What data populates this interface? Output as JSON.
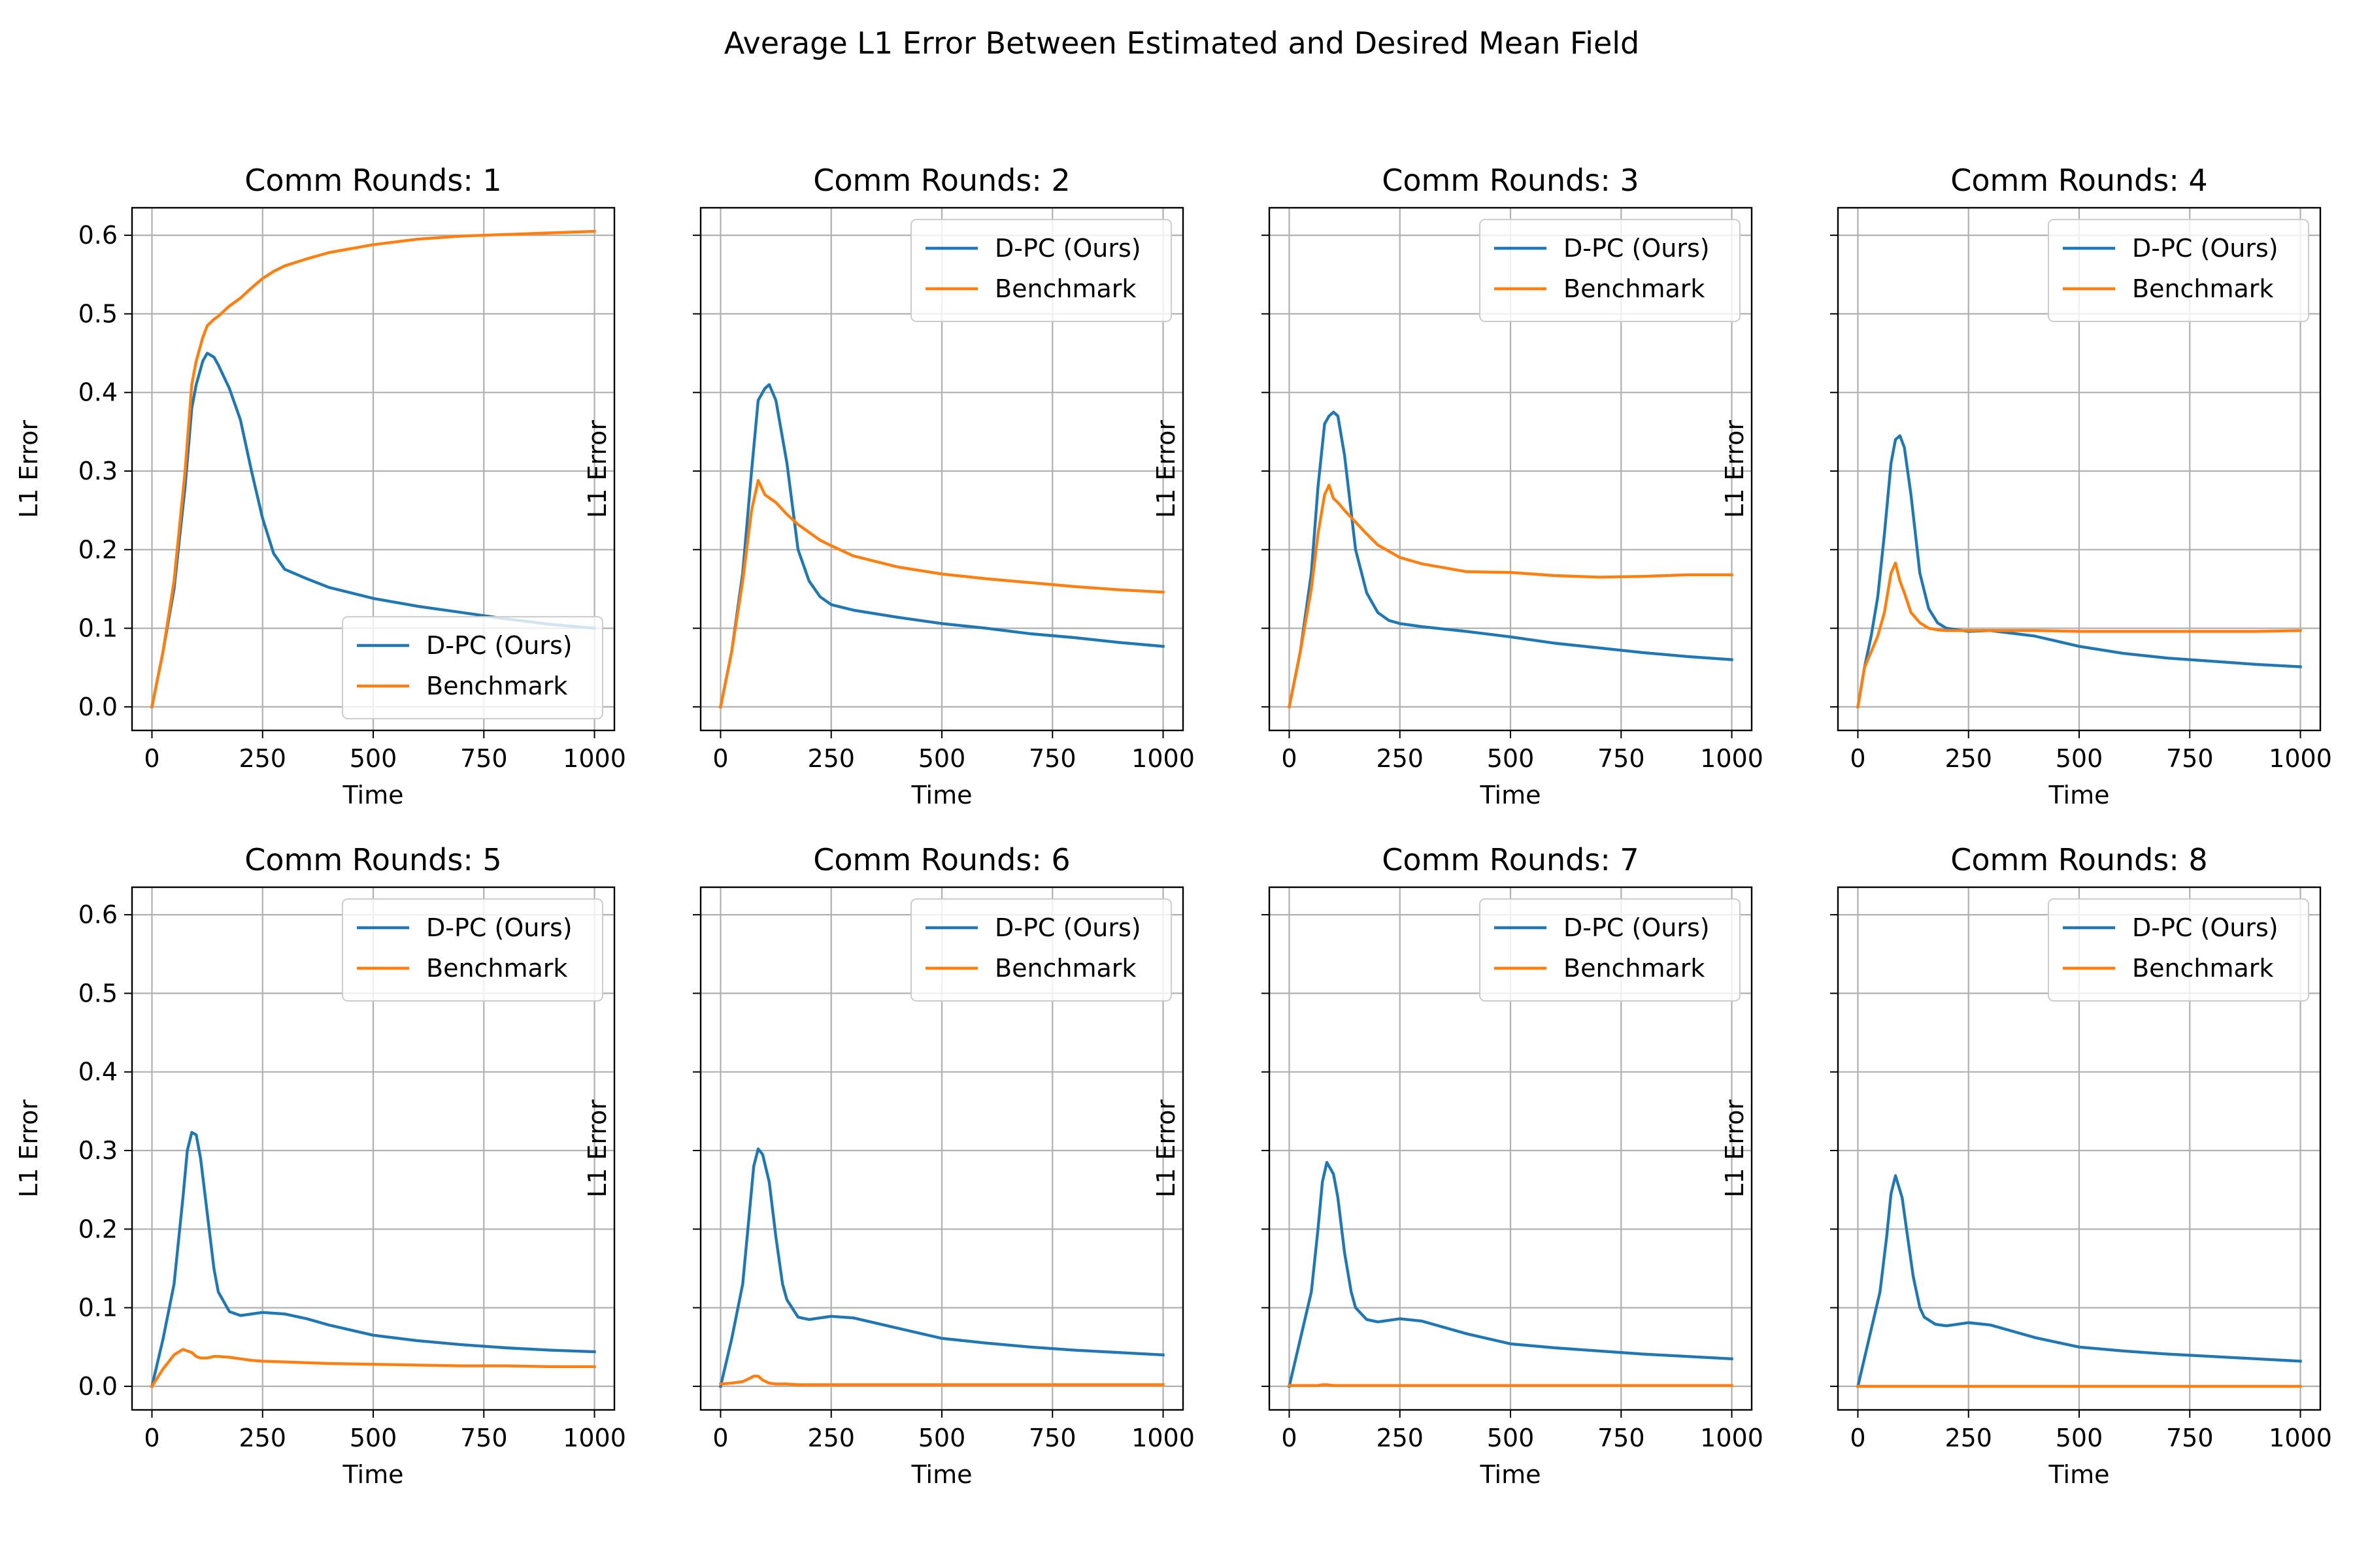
{
  "figure": {
    "title": "Average L1 Error Between Estimated and Desired Mean Field"
  },
  "colors": {
    "dpc": "#1f77b4",
    "benchmark": "#ff7f0e",
    "grid": "#b0b0b0"
  },
  "chart_data": [
    {
      "type": "line",
      "title": "Comm Rounds: 1",
      "xlabel": "Time",
      "ylabel": "L1 Error",
      "xlim": [
        -45,
        1045
      ],
      "ylim": [
        -0.03,
        0.635
      ],
      "xticks": [
        0,
        250,
        500,
        750,
        1000
      ],
      "yticks": [
        0.0,
        0.1,
        0.2,
        0.3,
        0.4,
        0.5,
        0.6
      ],
      "grid": true,
      "legend_position": "lower-right",
      "x": [
        0,
        25,
        50,
        75,
        90,
        100,
        115,
        125,
        140,
        150,
        175,
        200,
        225,
        250,
        275,
        300,
        350,
        400,
        500,
        600,
        700,
        800,
        900,
        1000
      ],
      "series": [
        {
          "name": "D-PC (Ours)",
          "values": [
            0.0,
            0.07,
            0.15,
            0.28,
            0.38,
            0.41,
            0.44,
            0.45,
            0.445,
            0.435,
            0.405,
            0.365,
            0.3,
            0.24,
            0.195,
            0.175,
            0.163,
            0.152,
            0.138,
            0.128,
            0.12,
            0.112,
            0.105,
            0.1
          ]
        },
        {
          "name": "Benchmark",
          "values": [
            0.0,
            0.07,
            0.16,
            0.3,
            0.41,
            0.44,
            0.47,
            0.485,
            0.493,
            0.497,
            0.51,
            0.52,
            0.533,
            0.545,
            0.554,
            0.561,
            0.57,
            0.578,
            0.588,
            0.595,
            0.599,
            0.601,
            0.603,
            0.605
          ]
        }
      ]
    },
    {
      "type": "line",
      "title": "Comm Rounds: 2",
      "xlabel": "Time",
      "ylabel": "L1 Error",
      "xlim": [
        -45,
        1045
      ],
      "ylim": [
        -0.03,
        0.635
      ],
      "xticks": [
        0,
        250,
        500,
        750,
        1000
      ],
      "yticks": [
        0.0,
        0.1,
        0.2,
        0.3,
        0.4,
        0.5,
        0.6
      ],
      "grid": true,
      "legend_position": "top-right",
      "x": [
        0,
        25,
        50,
        70,
        85,
        100,
        110,
        125,
        150,
        175,
        200,
        225,
        250,
        300,
        400,
        500,
        600,
        700,
        800,
        900,
        1000
      ],
      "series": [
        {
          "name": "D-PC (Ours)",
          "values": [
            0.0,
            0.07,
            0.17,
            0.3,
            0.39,
            0.405,
            0.41,
            0.39,
            0.31,
            0.2,
            0.16,
            0.14,
            0.13,
            0.123,
            0.114,
            0.106,
            0.1,
            0.093,
            0.088,
            0.082,
            0.077
          ]
        },
        {
          "name": "Benchmark",
          "values": [
            0.0,
            0.07,
            0.16,
            0.25,
            0.288,
            0.27,
            0.266,
            0.26,
            0.245,
            0.232,
            0.222,
            0.212,
            0.205,
            0.192,
            0.178,
            0.169,
            0.163,
            0.158,
            0.153,
            0.149,
            0.146
          ]
        }
      ]
    },
    {
      "type": "line",
      "title": "Comm Rounds: 3",
      "xlabel": "Time",
      "ylabel": "L1 Error",
      "xlim": [
        -45,
        1045
      ],
      "ylim": [
        -0.03,
        0.635
      ],
      "xticks": [
        0,
        250,
        500,
        750,
        1000
      ],
      "yticks": [
        0.0,
        0.1,
        0.2,
        0.3,
        0.4,
        0.5,
        0.6
      ],
      "grid": true,
      "legend_position": "top-right",
      "x": [
        0,
        25,
        50,
        65,
        80,
        90,
        100,
        110,
        125,
        150,
        175,
        200,
        225,
        250,
        300,
        400,
        500,
        600,
        700,
        800,
        900,
        1000
      ],
      "series": [
        {
          "name": "D-PC (Ours)",
          "values": [
            0.0,
            0.07,
            0.17,
            0.28,
            0.36,
            0.37,
            0.375,
            0.37,
            0.32,
            0.2,
            0.145,
            0.12,
            0.11,
            0.106,
            0.102,
            0.096,
            0.089,
            0.081,
            0.075,
            0.069,
            0.064,
            0.06
          ]
        },
        {
          "name": "Benchmark",
          "values": [
            0.0,
            0.07,
            0.15,
            0.22,
            0.27,
            0.282,
            0.265,
            0.26,
            0.25,
            0.235,
            0.22,
            0.206,
            0.198,
            0.19,
            0.182,
            0.172,
            0.171,
            0.167,
            0.165,
            0.166,
            0.168,
            0.168
          ]
        }
      ]
    },
    {
      "type": "line",
      "title": "Comm Rounds: 4",
      "xlabel": "Time",
      "ylabel": "L1 Error",
      "xlim": [
        -45,
        1045
      ],
      "ylim": [
        -0.03,
        0.635
      ],
      "xticks": [
        0,
        250,
        500,
        750,
        1000
      ],
      "yticks": [
        0.0,
        0.1,
        0.2,
        0.3,
        0.4,
        0.5,
        0.6
      ],
      "grid": true,
      "legend_position": "top-right",
      "x": [
        0,
        15,
        30,
        45,
        60,
        75,
        85,
        95,
        105,
        120,
        140,
        160,
        180,
        200,
        250,
        300,
        400,
        500,
        600,
        700,
        800,
        900,
        1000
      ],
      "series": [
        {
          "name": "D-PC (Ours)",
          "values": [
            0.0,
            0.05,
            0.09,
            0.14,
            0.22,
            0.31,
            0.34,
            0.345,
            0.33,
            0.27,
            0.17,
            0.125,
            0.107,
            0.1,
            0.096,
            0.097,
            0.09,
            0.077,
            0.068,
            0.062,
            0.058,
            0.054,
            0.051
          ]
        },
        {
          "name": "Benchmark",
          "values": [
            0.0,
            0.05,
            0.07,
            0.09,
            0.12,
            0.17,
            0.183,
            0.16,
            0.145,
            0.12,
            0.107,
            0.1,
            0.098,
            0.097,
            0.097,
            0.097,
            0.097,
            0.096,
            0.096,
            0.096,
            0.096,
            0.096,
            0.097
          ]
        }
      ]
    },
    {
      "type": "line",
      "title": "Comm Rounds: 5",
      "xlabel": "Time",
      "ylabel": "L1 Error",
      "xlim": [
        -45,
        1045
      ],
      "ylim": [
        -0.03,
        0.635
      ],
      "xticks": [
        0,
        250,
        500,
        750,
        1000
      ],
      "yticks": [
        0.0,
        0.1,
        0.2,
        0.3,
        0.4,
        0.5,
        0.6
      ],
      "grid": true,
      "legend_position": "top-right",
      "x": [
        0,
        25,
        50,
        70,
        80,
        90,
        100,
        110,
        125,
        140,
        150,
        175,
        200,
        225,
        250,
        300,
        350,
        400,
        500,
        600,
        700,
        800,
        900,
        1000
      ],
      "series": [
        {
          "name": "D-PC (Ours)",
          "values": [
            0.0,
            0.06,
            0.13,
            0.24,
            0.3,
            0.323,
            0.32,
            0.29,
            0.22,
            0.15,
            0.12,
            0.095,
            0.09,
            0.092,
            0.094,
            0.092,
            0.086,
            0.078,
            0.065,
            0.058,
            0.053,
            0.049,
            0.046,
            0.044
          ]
        },
        {
          "name": "Benchmark",
          "values": [
            0.0,
            0.022,
            0.04,
            0.047,
            0.045,
            0.043,
            0.038,
            0.036,
            0.036,
            0.038,
            0.038,
            0.037,
            0.035,
            0.033,
            0.032,
            0.031,
            0.03,
            0.029,
            0.028,
            0.027,
            0.026,
            0.026,
            0.025,
            0.025
          ]
        }
      ]
    },
    {
      "type": "line",
      "title": "Comm Rounds: 6",
      "xlabel": "Time",
      "ylabel": "L1 Error",
      "xlim": [
        -45,
        1045
      ],
      "ylim": [
        -0.03,
        0.635
      ],
      "xticks": [
        0,
        250,
        500,
        750,
        1000
      ],
      "yticks": [
        0.0,
        0.1,
        0.2,
        0.3,
        0.4,
        0.5,
        0.6
      ],
      "grid": true,
      "legend_position": "top-right",
      "x": [
        0,
        25,
        50,
        65,
        75,
        85,
        95,
        110,
        125,
        140,
        150,
        175,
        200,
        225,
        250,
        300,
        400,
        500,
        600,
        700,
        800,
        900,
        1000
      ],
      "series": [
        {
          "name": "D-PC (Ours)",
          "values": [
            0.0,
            0.06,
            0.13,
            0.22,
            0.28,
            0.302,
            0.295,
            0.26,
            0.19,
            0.13,
            0.11,
            0.088,
            0.085,
            0.087,
            0.089,
            0.087,
            0.074,
            0.061,
            0.055,
            0.05,
            0.046,
            0.043,
            0.04
          ]
        },
        {
          "name": "Benchmark",
          "values": [
            0.003,
            0.004,
            0.006,
            0.01,
            0.013,
            0.013,
            0.008,
            0.004,
            0.003,
            0.003,
            0.003,
            0.002,
            0.002,
            0.002,
            0.002,
            0.002,
            0.002,
            0.002,
            0.002,
            0.002,
            0.002,
            0.002,
            0.002
          ]
        }
      ]
    },
    {
      "type": "line",
      "title": "Comm Rounds: 7",
      "xlabel": "Time",
      "ylabel": "L1 Error",
      "xlim": [
        -45,
        1045
      ],
      "ylim": [
        -0.03,
        0.635
      ],
      "xticks": [
        0,
        250,
        500,
        750,
        1000
      ],
      "yticks": [
        0.0,
        0.1,
        0.2,
        0.3,
        0.4,
        0.5,
        0.6
      ],
      "grid": true,
      "legend_position": "top-right",
      "x": [
        0,
        25,
        50,
        65,
        75,
        85,
        100,
        110,
        125,
        140,
        150,
        175,
        200,
        225,
        250,
        300,
        400,
        500,
        600,
        700,
        800,
        900,
        1000
      ],
      "series": [
        {
          "name": "D-PC (Ours)",
          "values": [
            0.0,
            0.06,
            0.12,
            0.2,
            0.26,
            0.285,
            0.27,
            0.24,
            0.17,
            0.12,
            0.1,
            0.085,
            0.082,
            0.084,
            0.086,
            0.083,
            0.067,
            0.054,
            0.049,
            0.045,
            0.041,
            0.038,
            0.035
          ]
        },
        {
          "name": "Benchmark",
          "values": [
            0.001,
            0.001,
            0.001,
            0.001,
            0.002,
            0.002,
            0.001,
            0.001,
            0.001,
            0.001,
            0.001,
            0.001,
            0.001,
            0.001,
            0.001,
            0.001,
            0.001,
            0.001,
            0.001,
            0.001,
            0.001,
            0.001,
            0.001
          ]
        }
      ]
    },
    {
      "type": "line",
      "title": "Comm Rounds: 8",
      "xlabel": "Time",
      "ylabel": "L1 Error",
      "xlim": [
        -45,
        1045
      ],
      "ylim": [
        -0.03,
        0.635
      ],
      "xticks": [
        0,
        250,
        500,
        750,
        1000
      ],
      "yticks": [
        0.0,
        0.1,
        0.2,
        0.3,
        0.4,
        0.5,
        0.6
      ],
      "grid": true,
      "legend_position": "top-right",
      "x": [
        0,
        25,
        50,
        65,
        75,
        85,
        100,
        110,
        125,
        140,
        150,
        175,
        200,
        225,
        250,
        300,
        400,
        500,
        600,
        700,
        800,
        900,
        1000
      ],
      "series": [
        {
          "name": "D-PC (Ours)",
          "values": [
            0.0,
            0.06,
            0.12,
            0.19,
            0.245,
            0.268,
            0.24,
            0.2,
            0.14,
            0.1,
            0.088,
            0.079,
            0.077,
            0.079,
            0.081,
            0.078,
            0.062,
            0.05,
            0.045,
            0.041,
            0.038,
            0.035,
            0.032
          ]
        },
        {
          "name": "Benchmark",
          "values": [
            0.0,
            0.0,
            0.0,
            0.0,
            0.0,
            0.0,
            0.0,
            0.0,
            0.0,
            0.0,
            0.0,
            0.0,
            0.0,
            0.0,
            0.0,
            0.0,
            0.0,
            0.0,
            0.0,
            0.0,
            0.0,
            0.0,
            0.0
          ]
        }
      ]
    }
  ]
}
